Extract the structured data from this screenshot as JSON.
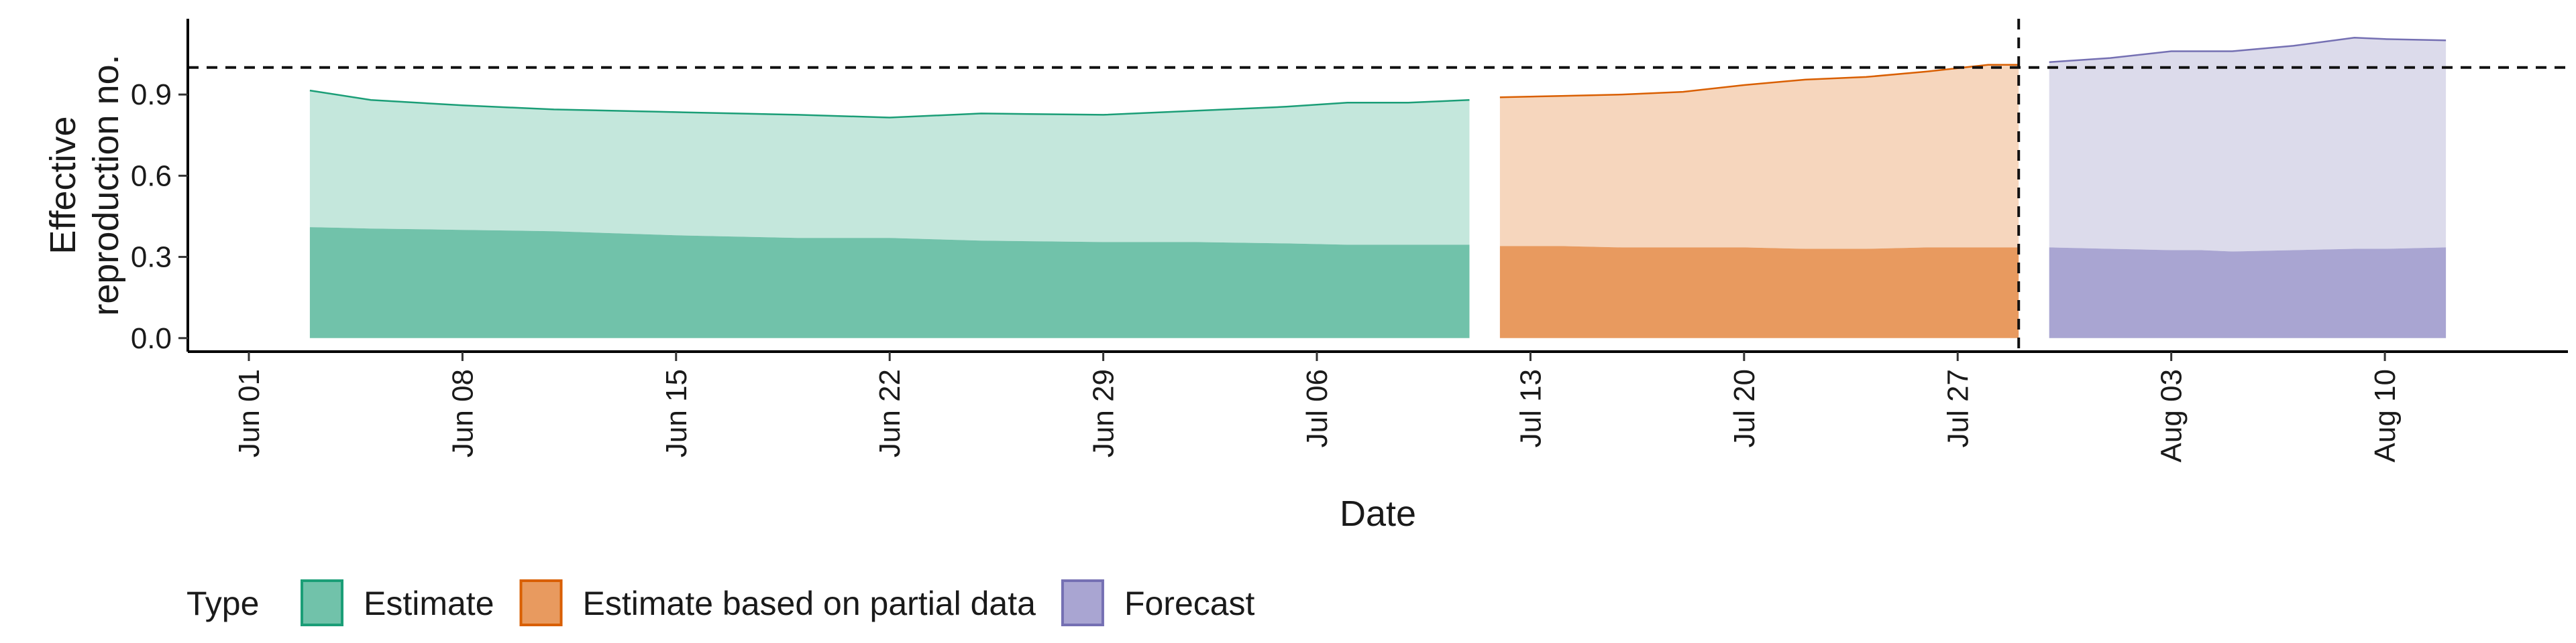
{
  "chart_data": {
    "type": "area",
    "title": "",
    "xlabel": "Date",
    "ylabel_lines": [
      "Effective",
      "reproduction no."
    ],
    "x_range": [
      "2021-05-30",
      "2021-08-16"
    ],
    "y_range": [
      -0.05,
      1.18
    ],
    "y_ticks": [
      0.0,
      0.3,
      0.6,
      0.9
    ],
    "y_tick_labels": [
      "0.0",
      "0.3",
      "0.6",
      "0.9"
    ],
    "x_ticks": [
      "2021-06-01",
      "2021-06-08",
      "2021-06-15",
      "2021-06-22",
      "2021-06-29",
      "2021-07-06",
      "2021-07-13",
      "2021-07-20",
      "2021-07-27",
      "2021-08-03",
      "2021-08-10"
    ],
    "x_tick_labels": [
      "Jun 01",
      "Jun 08",
      "Jun 15",
      "Jun 22",
      "Jun 29",
      "Jul 06",
      "Jul 13",
      "Jul 20",
      "Jul 27",
      "Aug 03",
      "Aug 10"
    ],
    "reference_line": {
      "y": 1.0,
      "style": "dashed"
    },
    "vertical_line": {
      "x": "2021-07-29",
      "style": "dashed"
    },
    "grid": false,
    "legend": {
      "title": "Type",
      "placement": "bottom",
      "items": [
        "Estimate",
        "Estimate based on partial data",
        "Forecast"
      ]
    },
    "series": [
      {
        "name": "Estimate",
        "color": "#1b9e77",
        "fill_lower": "#71c2aa",
        "fill_upper": "#c4e7dc",
        "dates": [
          "2021-06-03",
          "2021-06-05",
          "2021-06-08",
          "2021-06-11",
          "2021-06-15",
          "2021-06-19",
          "2021-06-22",
          "2021-06-25",
          "2021-06-29",
          "2021-07-02",
          "2021-07-05",
          "2021-07-07",
          "2021-07-09",
          "2021-07-11"
        ],
        "lower": [
          0.0,
          0.0,
          0.0,
          0.0,
          0.0,
          0.0,
          0.0,
          0.0,
          0.0,
          0.0,
          0.0,
          0.0,
          0.0,
          0.0
        ],
        "mid": [
          0.41,
          0.405,
          0.4,
          0.395,
          0.38,
          0.37,
          0.37,
          0.36,
          0.355,
          0.355,
          0.35,
          0.345,
          0.345,
          0.345
        ],
        "upper": [
          0.915,
          0.88,
          0.86,
          0.845,
          0.835,
          0.825,
          0.815,
          0.83,
          0.825,
          0.84,
          0.855,
          0.87,
          0.87,
          0.88
        ]
      },
      {
        "name": "Estimate based on partial data",
        "color": "#d95f02",
        "fill_lower": "#e89a5f",
        "fill_upper": "#f6d6bd",
        "dates": [
          "2021-07-12",
          "2021-07-14",
          "2021-07-16",
          "2021-07-18",
          "2021-07-20",
          "2021-07-22",
          "2021-07-24",
          "2021-07-26",
          "2021-07-28",
          "2021-07-29"
        ],
        "lower": [
          0.0,
          0.0,
          0.0,
          0.0,
          0.0,
          0.0,
          0.0,
          0.0,
          0.0,
          0.0
        ],
        "mid": [
          0.34,
          0.34,
          0.335,
          0.335,
          0.335,
          0.33,
          0.33,
          0.335,
          0.335,
          0.335
        ],
        "upper": [
          0.89,
          0.895,
          0.9,
          0.91,
          0.935,
          0.955,
          0.965,
          0.985,
          1.01,
          1.01
        ]
      },
      {
        "name": "Forecast",
        "color": "#7570b3",
        "fill_lower": "#a9a5d2",
        "fill_upper": "#dcdbeb",
        "dates": [
          "2021-07-30",
          "2021-08-01",
          "2021-08-03",
          "2021-08-04",
          "2021-08-05",
          "2021-08-07",
          "2021-08-09",
          "2021-08-10",
          "2021-08-12"
        ],
        "lower": [
          0.0,
          0.0,
          0.0,
          0.0,
          0.0,
          0.0,
          0.0,
          0.0,
          0.0
        ],
        "mid": [
          0.335,
          0.33,
          0.325,
          0.325,
          0.32,
          0.325,
          0.33,
          0.33,
          0.335
        ],
        "upper": [
          1.02,
          1.035,
          1.06,
          1.06,
          1.06,
          1.08,
          1.11,
          1.105,
          1.1
        ]
      }
    ]
  }
}
